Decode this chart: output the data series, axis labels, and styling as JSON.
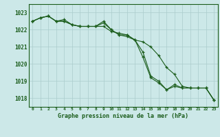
{
  "title": "Graphe pression niveau de la mer (hPa)",
  "background_color": "#cce8e8",
  "grid_color": "#aacccc",
  "line_color": "#1a5c1a",
  "x_labels": [
    "0",
    "1",
    "2",
    "3",
    "4",
    "5",
    "6",
    "7",
    "8",
    "9",
    "10",
    "11",
    "12",
    "13",
    "14",
    "15",
    "16",
    "17",
    "18",
    "19",
    "20",
    "21",
    "22",
    "23"
  ],
  "ylim": [
    1017.5,
    1023.5
  ],
  "yticks": [
    1018,
    1019,
    1020,
    1021,
    1022,
    1023
  ],
  "series": [
    [
      1022.5,
      1022.7,
      1022.8,
      1022.5,
      1022.5,
      1022.3,
      1022.2,
      1022.2,
      1022.2,
      1022.4,
      1022.0,
      1021.7,
      1021.6,
      1021.4,
      1021.3,
      1021.0,
      1020.5,
      1019.8,
      1019.4,
      1018.7,
      1018.6,
      1018.6,
      1018.6,
      1017.9
    ],
    [
      1022.5,
      1022.7,
      1022.8,
      1022.5,
      1022.6,
      1022.3,
      1022.2,
      1022.2,
      1022.2,
      1022.5,
      1022.0,
      1021.7,
      1021.7,
      1021.4,
      1020.4,
      1019.2,
      1018.9,
      1018.5,
      1018.8,
      1018.6,
      1018.6,
      1018.6,
      1018.6,
      1017.9
    ],
    [
      1022.5,
      1022.7,
      1022.8,
      1022.5,
      1022.5,
      1022.3,
      1022.2,
      1022.2,
      1022.2,
      1022.2,
      1021.9,
      1021.8,
      1021.7,
      1021.4,
      1020.7,
      1019.3,
      1019.0,
      1018.5,
      1018.7,
      1018.6,
      1018.6,
      1018.6,
      1018.6,
      1017.9
    ]
  ]
}
